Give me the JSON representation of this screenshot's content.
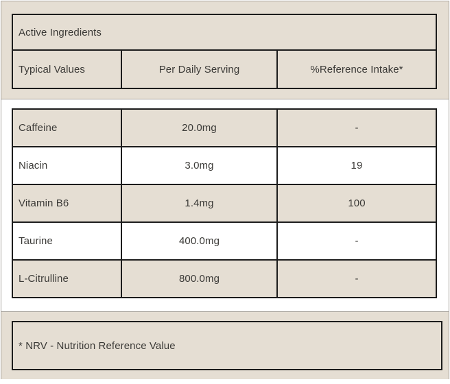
{
  "colors": {
    "panel_beige": "#e5ded3",
    "row_white": "#ffffff",
    "border_dark": "#1c1c1c",
    "border_gray": "#a5a19a",
    "text": "#3b3a37"
  },
  "header": {
    "title": "Active Ingredients",
    "columns": [
      "Typical Values",
      "Per Daily Serving",
      "%Reference Intake*"
    ]
  },
  "table": {
    "rows": [
      {
        "name": "Caffeine",
        "per_daily_serving": "20.0mg",
        "reference_intake": "-"
      },
      {
        "name": "Niacin",
        "per_daily_serving": "3.0mg",
        "reference_intake": "19"
      },
      {
        "name": "Vitamin B6",
        "per_daily_serving": "1.4mg",
        "reference_intake": "100"
      },
      {
        "name": "Taurine",
        "per_daily_serving": "400.0mg",
        "reference_intake": "-"
      },
      {
        "name": "L-Citrulline",
        "per_daily_serving": "800.0mg",
        "reference_intake": "-"
      }
    ]
  },
  "footnote": {
    "text": "* NRV - Nutrition Reference Value"
  }
}
